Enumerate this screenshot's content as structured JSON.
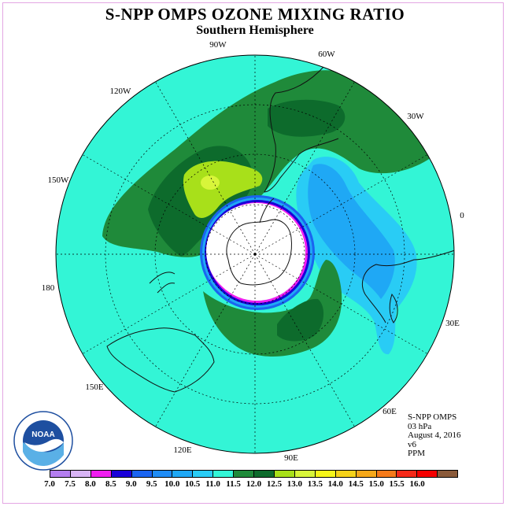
{
  "header": {
    "title": "S-NPP OMPS OZONE MIXING RATIO",
    "subtitle": "Southern Hemisphere"
  },
  "map": {
    "projection": "south-polar-stereographic",
    "longitude_labels": [
      "90W",
      "60W",
      "30W",
      "0",
      "30E",
      "60E",
      "90E",
      "120E",
      "150E",
      "180",
      "150W",
      "120W"
    ],
    "colors": {
      "background_field": "#33f5d6",
      "green_11_11_5": "#1f8a3a",
      "green_11_5_12": "#0d6b2c",
      "lime_12_12_5": "#a8e01a",
      "yellow_12_5_13": "#d8f53a",
      "light_blue_10_5_11": "#29ccf5",
      "blue_10_10_5": "#1fa8f5",
      "polar_night_hole": "#ffffff"
    }
  },
  "info": {
    "instrument": "S-NPP OMPS",
    "level": "03 hPa",
    "date": "August 4, 2016",
    "version": "v6",
    "units": "PPM"
  },
  "logo": {
    "text": "NOAA",
    "ring_text": "NATIONAL OCEANIC AND ATMOSPHERIC ADMINISTRATION · U.S. DEPARTMENT OF COMMERCE"
  },
  "colorbar": {
    "colors": [
      "#b47ef0",
      "#d8b4f5",
      "#f01ef0",
      "#1a00d8",
      "#1a64f0",
      "#1f8cf5",
      "#1fa8f5",
      "#29ccf5",
      "#33f5d6",
      "#1f8a3a",
      "#0d6b2c",
      "#a8e01a",
      "#d8f53a",
      "#f5f51a",
      "#f5d21a",
      "#f5a81a",
      "#f57a1a",
      "#f52a1a",
      "#f50000",
      "#8a5a3a"
    ],
    "ticks": [
      "7.0",
      "7.5",
      "8.0",
      "8.5",
      "9.0",
      "9.5",
      "10.0",
      "10.5",
      "11.0",
      "11.5",
      "12.0",
      "12.5",
      "13.0",
      "13.5",
      "14.0",
      "14.5",
      "15.0",
      "15.5",
      "16.0"
    ]
  }
}
